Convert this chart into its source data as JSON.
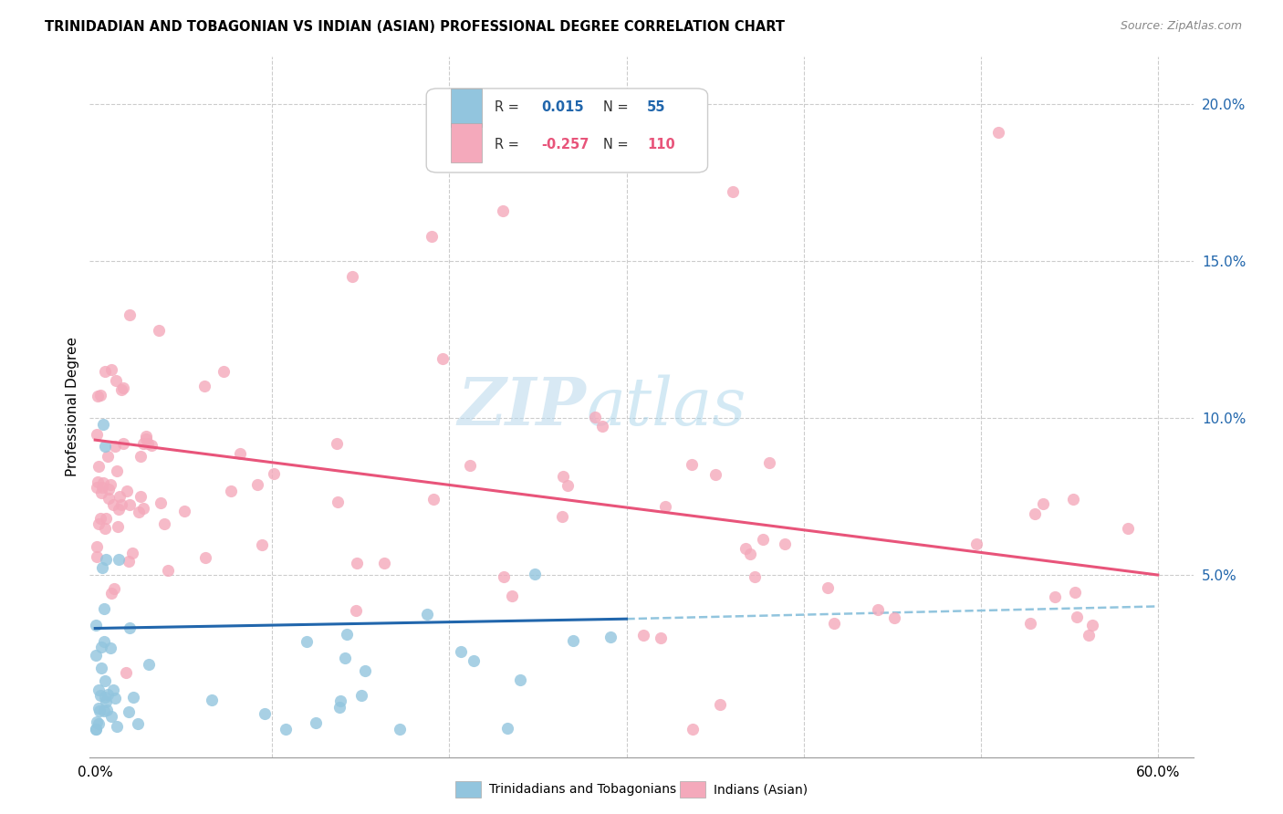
{
  "title": "TRINIDADIAN AND TOBAGONIAN VS INDIAN (ASIAN) PROFESSIONAL DEGREE CORRELATION CHART",
  "source": "Source: ZipAtlas.com",
  "ylabel": "Professional Degree",
  "y_ticks": [
    0.05,
    0.1,
    0.15,
    0.2
  ],
  "y_tick_labels": [
    "5.0%",
    "10.0%",
    "15.0%",
    "20.0%"
  ],
  "xlim": [
    -0.003,
    0.62
  ],
  "ylim": [
    -0.008,
    0.215
  ],
  "legend_blue_r": "0.015",
  "legend_blue_n": "55",
  "legend_pink_r": "-0.257",
  "legend_pink_n": "110",
  "legend_blue_label": "Trinidadians and Tobagonians",
  "legend_pink_label": "Indians (Asian)",
  "blue_color": "#92c5de",
  "pink_color": "#f4a9bb",
  "blue_line_color": "#2166ac",
  "pink_line_color": "#e8547a",
  "dashed_line_color": "#92c5de",
  "grid_color": "#cccccc",
  "blue_line_x": [
    0.0,
    0.3
  ],
  "blue_line_y": [
    0.033,
    0.036
  ],
  "pink_line_x": [
    0.0,
    0.6
  ],
  "pink_line_y": [
    0.093,
    0.05
  ],
  "dashed_line_x": [
    0.3,
    0.6
  ],
  "dashed_line_y": [
    0.036,
    0.04
  ]
}
